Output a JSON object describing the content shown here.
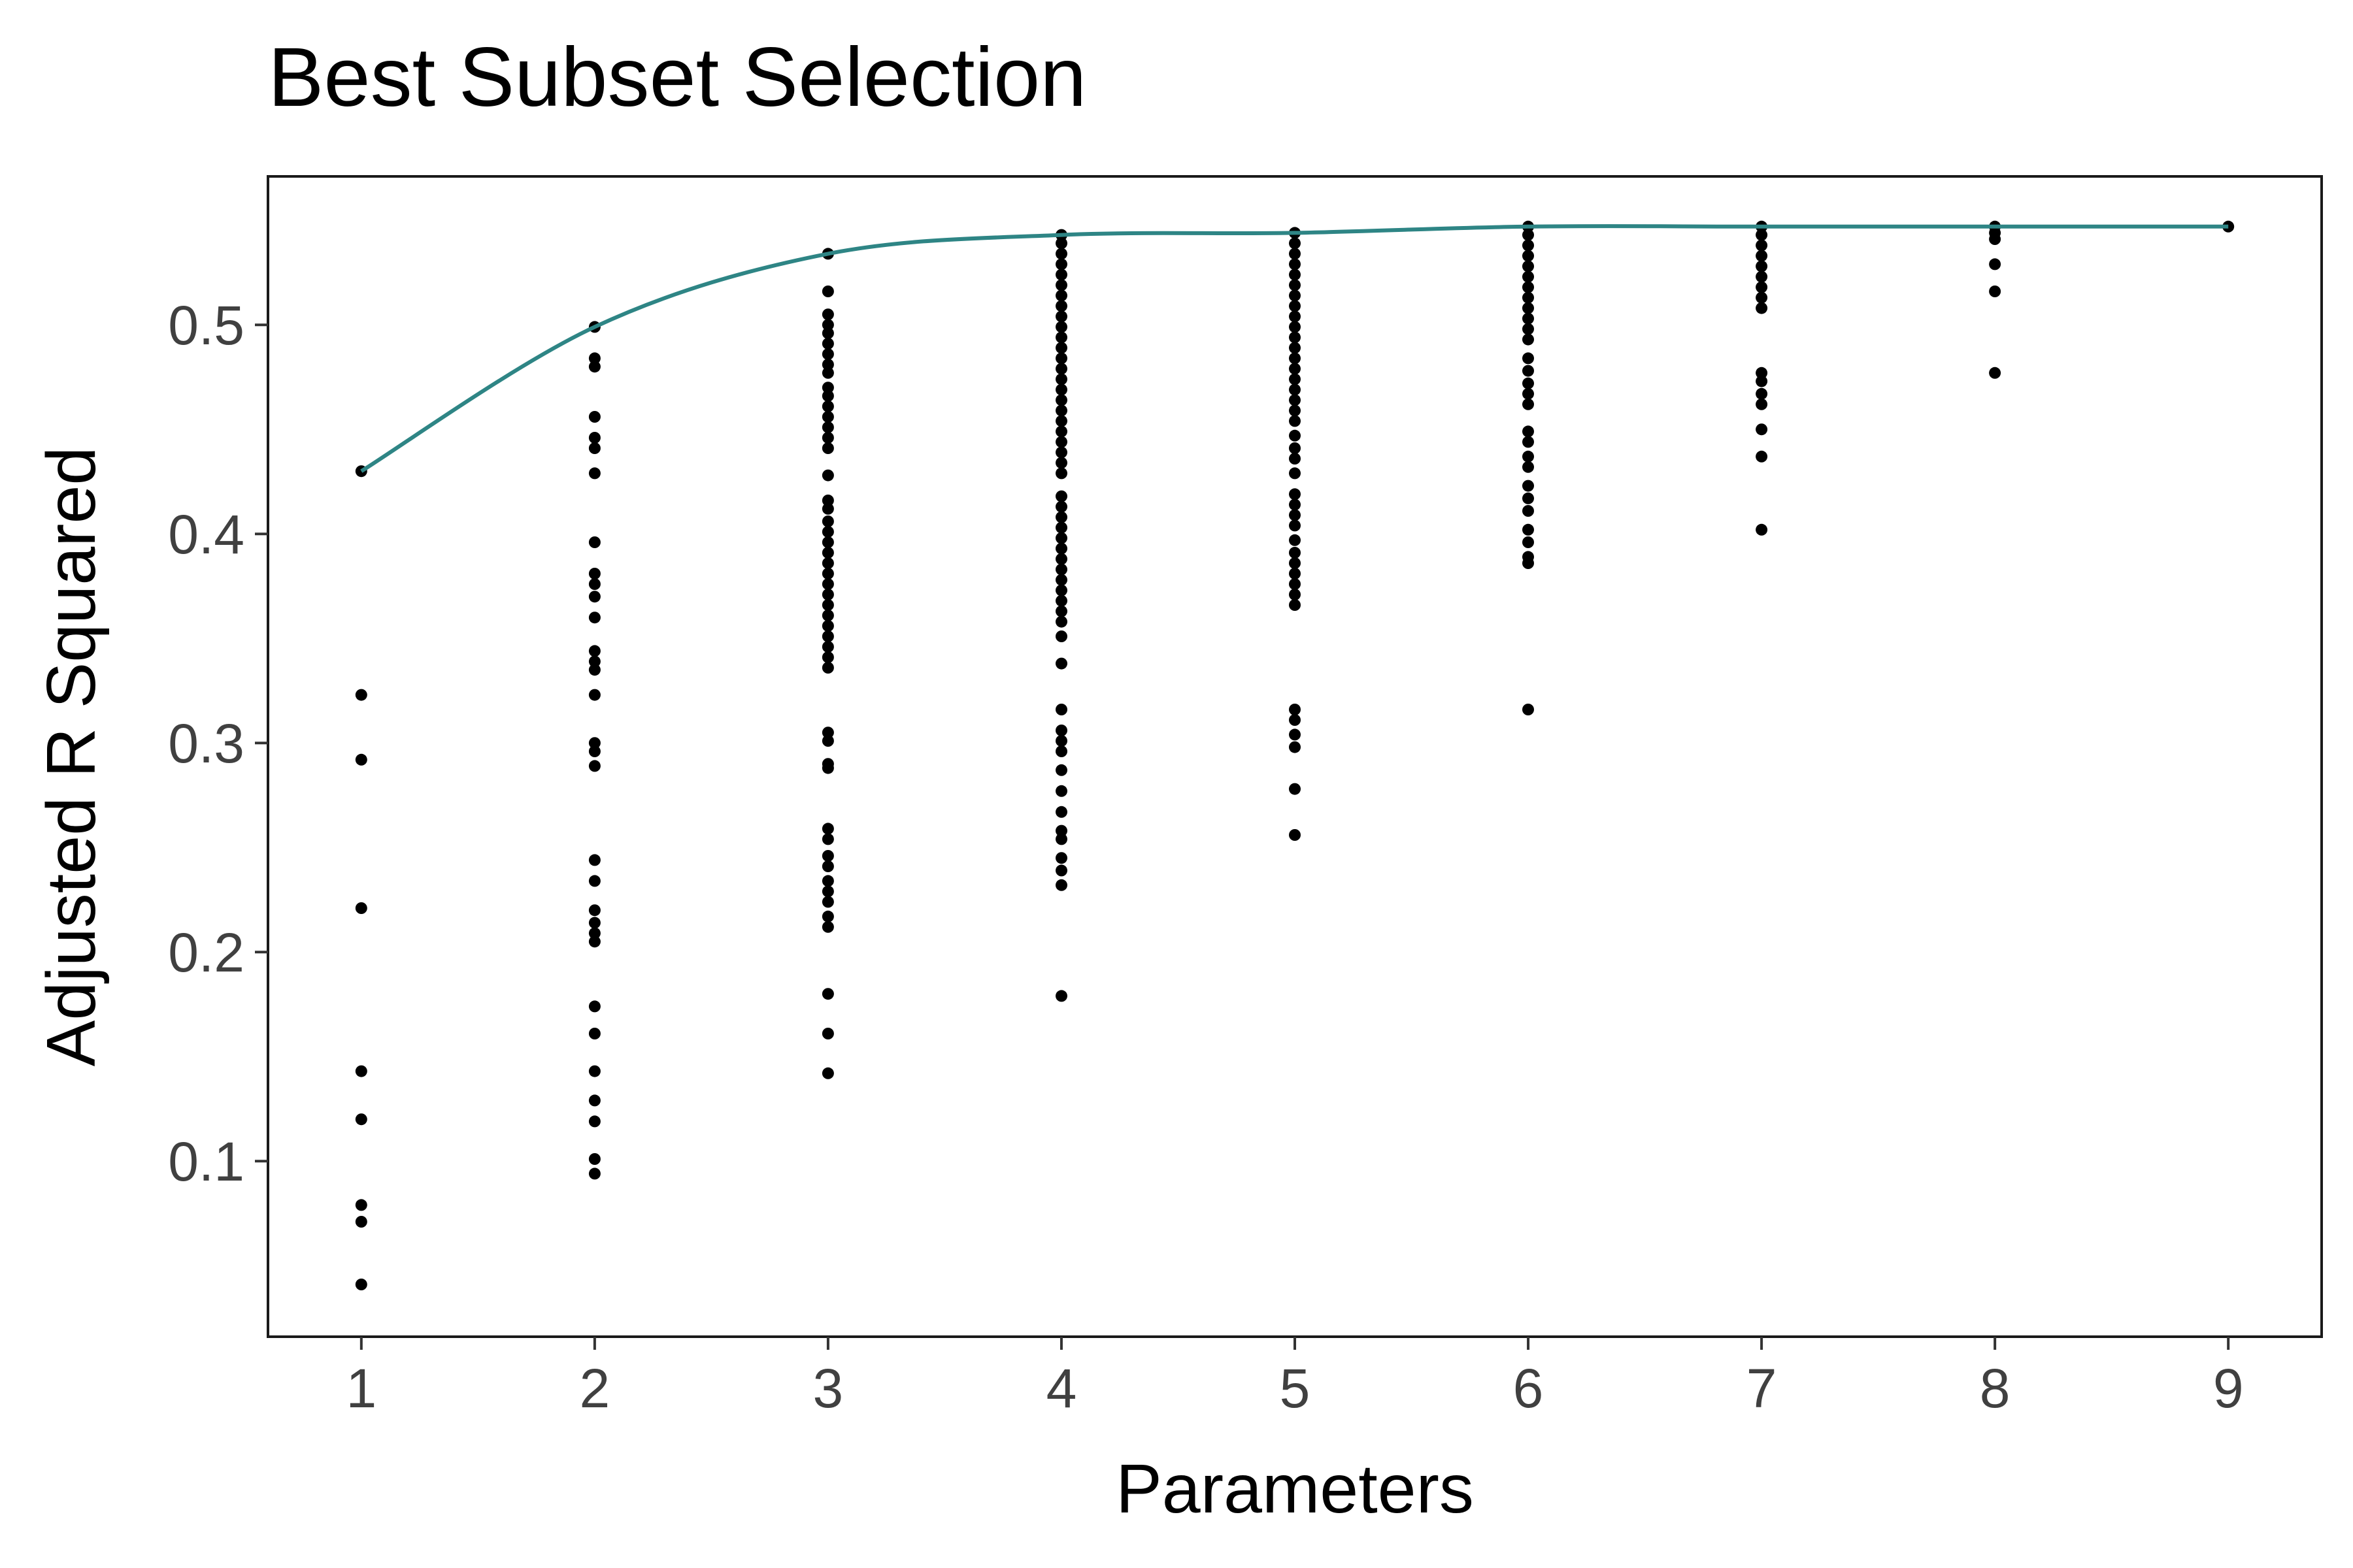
{
  "chart_data": {
    "type": "scatter",
    "title": "Best Subset Selection",
    "xlabel": "Parameters",
    "ylabel": "Adjusted R Squared",
    "xlim": [
      0.6,
      9.4
    ],
    "ylim": [
      0.016,
      0.571
    ],
    "x_ticks": [
      "1",
      "2",
      "3",
      "4",
      "5",
      "6",
      "7",
      "8",
      "9"
    ],
    "y_ticks": [
      "0.1",
      "0.2",
      "0.3",
      "0.4",
      "0.5"
    ],
    "grid": false,
    "legend": "none",
    "point_color": "#000000",
    "line_color": "#2E8585",
    "points": [
      {
        "x": 1,
        "y": [
          0.43,
          0.323,
          0.292,
          0.221,
          0.143,
          0.12,
          0.079,
          0.071,
          0.041
        ]
      },
      {
        "x": 2,
        "y": [
          0.499,
          0.484,
          0.48,
          0.456,
          0.446,
          0.441,
          0.429,
          0.396,
          0.381,
          0.376,
          0.37,
          0.36,
          0.344,
          0.339,
          0.335,
          0.323,
          0.3,
          0.296,
          0.289,
          0.244,
          0.234,
          0.22,
          0.214,
          0.209,
          0.205,
          0.174,
          0.161,
          0.143,
          0.129,
          0.119,
          0.101,
          0.094
        ]
      },
      {
        "x": 3,
        "y": [
          0.534,
          0.516,
          0.505,
          0.5,
          0.496,
          0.491,
          0.486,
          0.481,
          0.477,
          0.47,
          0.466,
          0.461,
          0.456,
          0.451,
          0.446,
          0.441,
          0.428,
          0.416,
          0.412,
          0.406,
          0.401,
          0.396,
          0.391,
          0.386,
          0.381,
          0.376,
          0.371,
          0.366,
          0.361,
          0.356,
          0.351,
          0.346,
          0.341,
          0.336,
          0.305,
          0.301,
          0.29,
          0.288,
          0.259,
          0.254,
          0.246,
          0.241,
          0.234,
          0.229,
          0.224,
          0.217,
          0.212,
          0.18,
          0.161,
          0.142
        ]
      },
      {
        "x": 4,
        "y": [
          0.543,
          0.539,
          0.534,
          0.529,
          0.524,
          0.519,
          0.514,
          0.509,
          0.504,
          0.499,
          0.494,
          0.489,
          0.484,
          0.479,
          0.474,
          0.469,
          0.464,
          0.459,
          0.454,
          0.449,
          0.444,
          0.439,
          0.434,
          0.429,
          0.418,
          0.413,
          0.408,
          0.403,
          0.398,
          0.393,
          0.388,
          0.383,
          0.378,
          0.373,
          0.368,
          0.363,
          0.358,
          0.351,
          0.338,
          0.316,
          0.306,
          0.301,
          0.296,
          0.287,
          0.277,
          0.267,
          0.258,
          0.254,
          0.245,
          0.239,
          0.232,
          0.179
        ]
      },
      {
        "x": 5,
        "y": [
          0.544,
          0.539,
          0.534,
          0.529,
          0.524,
          0.519,
          0.514,
          0.509,
          0.504,
          0.499,
          0.494,
          0.489,
          0.484,
          0.479,
          0.474,
          0.469,
          0.464,
          0.459,
          0.454,
          0.447,
          0.441,
          0.436,
          0.429,
          0.419,
          0.414,
          0.409,
          0.404,
          0.397,
          0.391,
          0.386,
          0.381,
          0.376,
          0.371,
          0.366,
          0.316,
          0.311,
          0.304,
          0.298,
          0.278,
          0.256
        ]
      },
      {
        "x": 6,
        "y": [
          0.547,
          0.543,
          0.538,
          0.533,
          0.528,
          0.523,
          0.518,
          0.513,
          0.508,
          0.503,
          0.498,
          0.493,
          0.484,
          0.478,
          0.472,
          0.467,
          0.462,
          0.449,
          0.444,
          0.437,
          0.432,
          0.423,
          0.417,
          0.411,
          0.402,
          0.396,
          0.389,
          0.386,
          0.316
        ]
      },
      {
        "x": 7,
        "y": [
          0.547,
          0.543,
          0.538,
          0.533,
          0.528,
          0.523,
          0.518,
          0.513,
          0.508,
          0.477,
          0.473,
          0.467,
          0.462,
          0.45,
          0.437,
          0.402
        ]
      },
      {
        "x": 8,
        "y": [
          0.547,
          0.544,
          0.541,
          0.529,
          0.516,
          0.477
        ]
      },
      {
        "x": 9,
        "y": [
          0.547
        ]
      }
    ],
    "best_line": {
      "x": [
        1,
        2,
        3,
        4,
        5,
        6,
        7,
        8,
        9
      ],
      "y": [
        0.43,
        0.499,
        0.534,
        0.543,
        0.544,
        0.547,
        0.547,
        0.547,
        0.547
      ]
    }
  }
}
